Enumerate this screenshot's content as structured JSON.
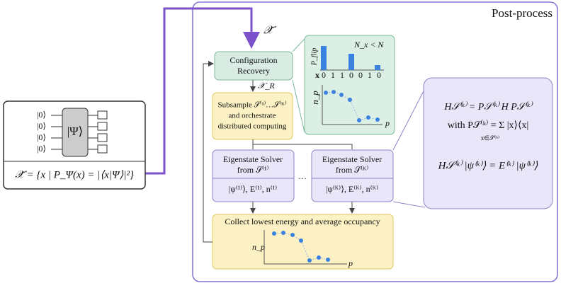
{
  "title": "Post-process",
  "sample_set": "𝒳̃",
  "circuit": {
    "inputs": [
      "|0⟩",
      "|0⟩",
      "|0⟩",
      "|0⟩"
    ],
    "state": "|Ψ⟩",
    "formula": "𝒳̃ = {x | P_Ψ(x) = |⟨x|Ψ⟩|²}"
  },
  "nodes": [
    {
      "label": [
        "Configuration",
        "Recovery"
      ]
    },
    {
      "label": [
        "Subsample 𝒮⁽¹⁾…𝒮⁽ᴷ⁾",
        "and orchestrate",
        "distributed computing"
      ]
    },
    {
      "label": [
        "Eigenstate Solver",
        "from 𝒮⁽¹⁾"
      ],
      "output": "|ψ⁽¹⁾⟩, E⁽¹⁾, n⁽¹⁾"
    },
    {
      "label": [
        "Eigenstate Solver",
        "from 𝒮⁽ᴷ⁾"
      ],
      "output": "|ψ⁽ᴷ⁾⟩, E⁽ᴷ⁾, n⁽ᴷ⁾"
    },
    {
      "label": [
        "Collect lowest energy and average occupancy"
      ]
    }
  ],
  "recovered_label": "𝒳_R",
  "ellipsis": "…",
  "inset": {
    "condition": "N_x < N",
    "y_label": "P_flip",
    "x_row_label": "x",
    "bits": [
      "0",
      "1",
      "1",
      "0",
      "0",
      "1",
      "0"
    ],
    "occupancy_label": "n_p",
    "p_label": "p"
  },
  "collect_plot": {
    "y_label": "n_p",
    "x_label": "p"
  },
  "equations": [
    "H𝒮⁽ᵏ⁾ = P𝒮⁽ᵏ⁾ H P𝒮⁽ᵏ⁾",
    "with P𝒮⁽ᵏ⁾ = Σ |x⟩⟨x|",
    "x∈𝒮⁽ᵏ⁾",
    "H𝒮⁽ᵏ⁾ |ψ⁽ᵏ⁾⟩ = E⁽ᵏ⁾ |ψ⁽ᵏ⁾⟩"
  ]
}
